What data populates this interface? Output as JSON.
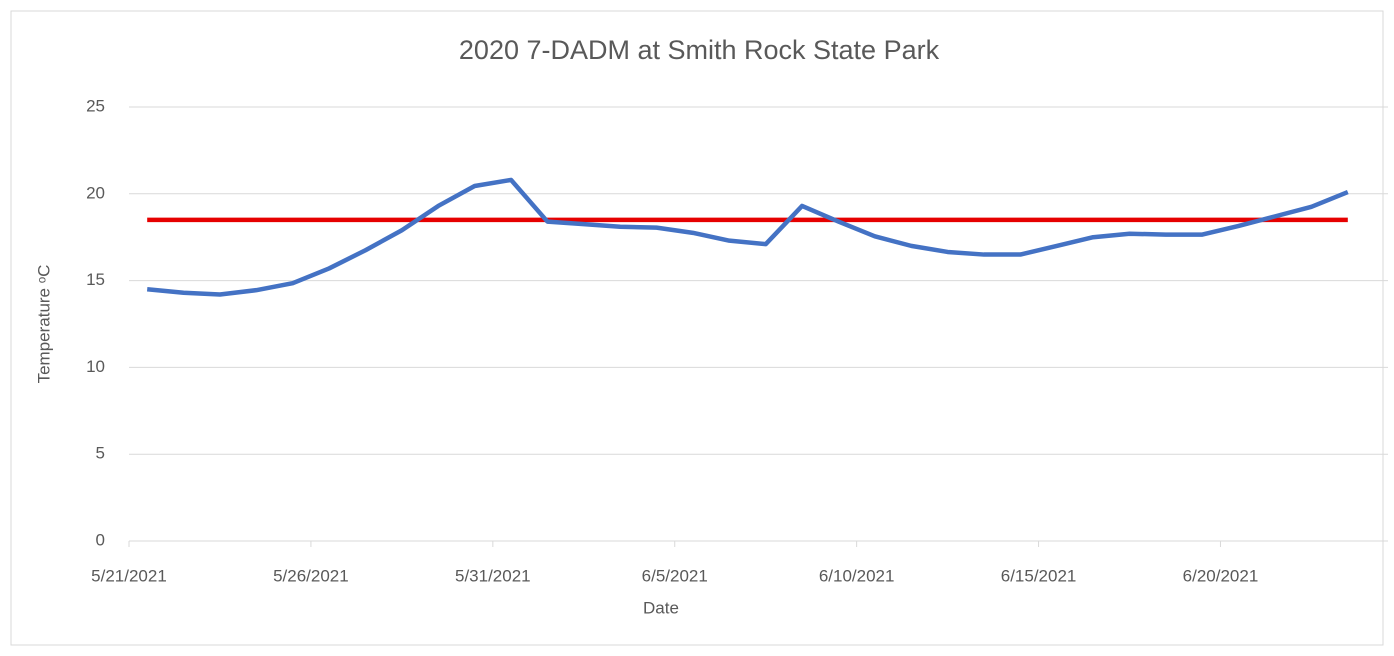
{
  "chart_data": {
    "type": "line",
    "title": "2020 7-DADM at Smith Rock State Park",
    "x_label": "Date",
    "y_label": "Temperature ᵒC",
    "categories": [
      "5/21/2021",
      null,
      null,
      null,
      null,
      "5/26/2021",
      null,
      null,
      null,
      null,
      "5/31/2021",
      null,
      null,
      null,
      null,
      "6/5/2021",
      null,
      null,
      null,
      null,
      "6/10/2021",
      null,
      null,
      null,
      null,
      "6/15/2021",
      null,
      null,
      null,
      null,
      "6/20/2021",
      null,
      null,
      null
    ],
    "series": [
      {
        "color": "#4472c4",
        "values": [
          14.5,
          14.3,
          14.2,
          14.45,
          14.85,
          15.7,
          16.75,
          17.9,
          19.3,
          20.45,
          20.8,
          18.4,
          18.25,
          18.1,
          18.05,
          17.75,
          17.3,
          17.1,
          19.3,
          18.4,
          17.55,
          17.0,
          16.65,
          16.5,
          16.5,
          17.0,
          17.5,
          17.7,
          17.65,
          17.65,
          18.15,
          18.7,
          19.25,
          20.1
        ]
      }
    ],
    "hline": {
      "value": 18.5,
      "color": "#e60000"
    },
    "ylim": [
      0,
      25
    ],
    "yticks": [
      0,
      5,
      10,
      15,
      20,
      25
    ],
    "grid": true
  }
}
